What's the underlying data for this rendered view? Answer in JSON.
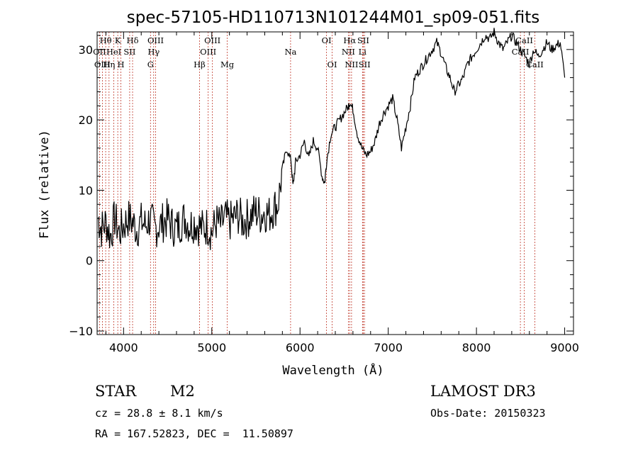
{
  "chart_data": {
    "type": "line",
    "title": "spec-57105-HD110713N101244M01_sp09-051.fits",
    "xlabel": "Wavelength (Å)",
    "ylabel": "Flux (relative)",
    "xlim": [
      3700,
      9100
    ],
    "ylim": [
      -10.5,
      32.5
    ],
    "xticks": [
      4000,
      5000,
      6000,
      7000,
      8000,
      9000
    ],
    "yticks": [
      -10,
      0,
      10,
      20,
      30
    ],
    "xtick_labels": [
      "4000",
      "5000",
      "6000",
      "7000",
      "8000",
      "9000"
    ],
    "ytick_labels": [
      "−10",
      "0",
      "10",
      "20",
      "30"
    ],
    "grid": false,
    "series": [
      {
        "name": "flux",
        "x": [
          3710,
          3750,
          3800,
          3850,
          3900,
          3950,
          4000,
          4050,
          4100,
          4150,
          4200,
          4250,
          4300,
          4350,
          4400,
          4450,
          4500,
          4550,
          4600,
          4650,
          4700,
          4750,
          4800,
          4850,
          4900,
          4950,
          5000,
          5050,
          5100,
          5150,
          5200,
          5250,
          5300,
          5350,
          5400,
          5450,
          5500,
          5550,
          5600,
          5650,
          5700,
          5750,
          5800,
          5850,
          5900,
          5920,
          5950,
          6000,
          6050,
          6100,
          6150,
          6200,
          6250,
          6280,
          6300,
          6350,
          6400,
          6450,
          6500,
          6550,
          6560,
          6600,
          6650,
          6700,
          6750,
          6800,
          6850,
          6900,
          6950,
          7000,
          7050,
          7100,
          7150,
          7200,
          7250,
          7300,
          7350,
          7400,
          7450,
          7500,
          7550,
          7600,
          7650,
          7700,
          7750,
          7800,
          7850,
          7900,
          7950,
          8000,
          8050,
          8100,
          8150,
          8200,
          8250,
          8300,
          8350,
          8400,
          8450,
          8500,
          8550,
          8600,
          8650,
          8700,
          8750,
          8800,
          8850,
          8900,
          8950,
          9000
        ],
        "values": [
          6,
          4.5,
          5.5,
          3.5,
          6,
          4,
          5,
          6,
          5.5,
          4.5,
          5.5,
          5,
          6,
          4.5,
          5,
          5.5,
          6,
          5,
          4.5,
          5.5,
          6,
          5,
          5.5,
          5,
          4.5,
          5,
          4,
          5.5,
          5,
          6,
          5.5,
          6,
          6.5,
          5.5,
          6,
          6.5,
          7,
          6.5,
          7,
          6.5,
          7.5,
          8,
          13,
          16,
          14,
          10.5,
          14,
          15,
          17,
          14.5,
          17,
          16,
          12,
          11,
          14,
          18,
          19,
          20,
          21,
          22,
          22.5,
          21.5,
          18,
          16,
          15,
          15.5,
          17,
          19.5,
          21,
          22,
          23,
          20,
          16,
          19,
          22,
          26,
          27,
          28,
          29,
          30,
          31,
          29.5,
          27.5,
          26,
          24,
          25,
          26,
          28,
          29,
          30,
          31,
          32,
          31.5,
          32.5,
          31,
          30,
          31,
          32,
          31,
          30,
          29,
          28,
          30,
          29,
          30,
          31,
          30,
          30.5,
          31,
          26
        ]
      }
    ],
    "line_markers": [
      {
        "label": "Hθ",
        "x": 3797,
        "row": 0
      },
      {
        "label": "OII",
        "x": 3727,
        "row": 1
      },
      {
        "label": "OIII",
        "x": 3760,
        "row": 2
      },
      {
        "label": "K",
        "x": 3934,
        "row": 0
      },
      {
        "label": "HeI",
        "x": 3889,
        "row": 1
      },
      {
        "label": "Hη",
        "x": 3835,
        "row": 2
      },
      {
        "label": "SII",
        "x": 4069,
        "row": 1
      },
      {
        "label": "H",
        "x": 3969,
        "row": 2
      },
      {
        "label": "Hδ",
        "x": 4102,
        "row": 0
      },
      {
        "label": "OIII",
        "x": 4363,
        "row": 0
      },
      {
        "label": "Hγ",
        "x": 4341,
        "row": 1
      },
      {
        "label": "G",
        "x": 4305,
        "row": 2
      },
      {
        "label": "OIII",
        "x": 5007,
        "row": 0
      },
      {
        "label": "OIII",
        "x": 4959,
        "row": 1
      },
      {
        "label": "Hβ",
        "x": 4861,
        "row": 2
      },
      {
        "label": "Mg",
        "x": 5175,
        "row": 2
      },
      {
        "label": "Na",
        "x": 5893,
        "row": 1
      },
      {
        "label": "OI",
        "x": 6300,
        "row": 0
      },
      {
        "label": "OI",
        "x": 6364,
        "row": 2
      },
      {
        "label": "Hα",
        "x": 6563,
        "row": 0
      },
      {
        "label": "SII",
        "x": 6717,
        "row": 0
      },
      {
        "label": "NII",
        "x": 6548,
        "row": 1
      },
      {
        "label": "Li",
        "x": 6708,
        "row": 1
      },
      {
        "label": "NII",
        "x": 6584,
        "row": 2
      },
      {
        "label": "SII",
        "x": 6731,
        "row": 2
      },
      {
        "label": "CaII",
        "x": 8542,
        "row": 0
      },
      {
        "label": "CaII",
        "x": 8498,
        "row": 1
      },
      {
        "label": "CaII",
        "x": 8662,
        "row": 2
      }
    ]
  },
  "info": {
    "object_class": "STAR",
    "subclass": "M2",
    "survey": "LAMOST DR3",
    "cz": "cz = 28.8 ± 8.1 km/s",
    "obs_date": "Obs-Date: 20150323",
    "coords": "RA = 167.52823, DEC =  11.50897"
  },
  "colors": {
    "spectrum": "#000000",
    "marker_lines": "#c0392b",
    "axes": "#000000"
  }
}
